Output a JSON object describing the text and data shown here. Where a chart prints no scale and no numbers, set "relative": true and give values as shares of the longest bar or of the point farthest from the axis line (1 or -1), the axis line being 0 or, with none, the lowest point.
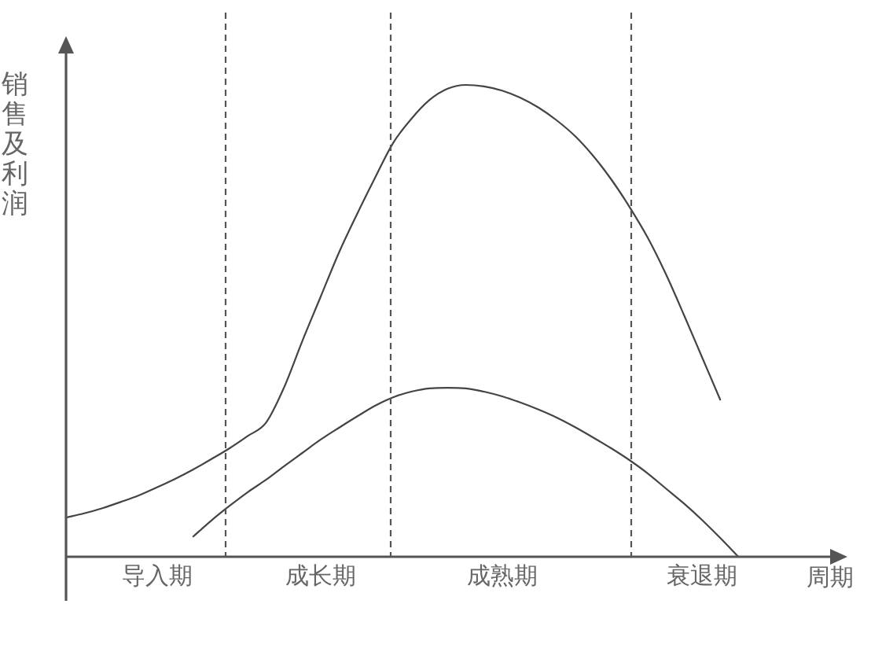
{
  "chart_data": {
    "type": "line",
    "xlabel": "周期",
    "ylabel": "销售及利润",
    "relative": true,
    "marker": "none",
    "line_style": "solid",
    "categories": [
      null,
      null,
      null,
      null,
      null,
      "导入期",
      null,
      null,
      null,
      null,
      null,
      null,
      null,
      null,
      "成长期",
      null,
      null,
      null,
      null,
      null,
      null,
      null,
      null,
      null,
      "成熟期",
      null,
      null,
      null,
      null,
      null,
      null,
      null,
      null,
      null,
      null,
      "衰退期",
      null,
      null,
      null,
      null,
      null,
      null,
      null,
      null
    ],
    "series": [
      {
        "color": "#444444",
        "values": [
          0.083,
          0.092,
          0.103,
          0.116,
          0.13,
          0.147,
          0.165,
          0.185,
          0.207,
          0.23,
          0.256,
          0.284,
          0.359,
          0.457,
          0.55,
          0.643,
          0.725,
          0.803,
          0.877,
          0.928,
          0.968,
          0.992,
          1,
          0.997,
          0.988,
          0.973,
          0.952,
          0.925,
          0.892,
          0.85,
          0.8,
          0.742,
          0.677,
          0.6,
          0.513,
          0.423,
          0.333,
          null,
          null,
          null,
          null,
          null,
          null,
          null
        ]
      },
      {
        "color": "#444444",
        "values": [
          null,
          null,
          null,
          null,
          null,
          null,
          null,
          0.043,
          0.077,
          0.108,
          0.137,
          0.163,
          0.192,
          0.22,
          0.248,
          0.273,
          0.297,
          0.32,
          0.338,
          0.35,
          0.357,
          0.358,
          0.357,
          0.35,
          0.34,
          0.327,
          0.312,
          0.295,
          0.275,
          0.253,
          0.23,
          0.205,
          0.177,
          0.145,
          0.113,
          0.078,
          0.04,
          0,
          null,
          null,
          null,
          null,
          null,
          null
        ]
      }
    ]
  }
}
